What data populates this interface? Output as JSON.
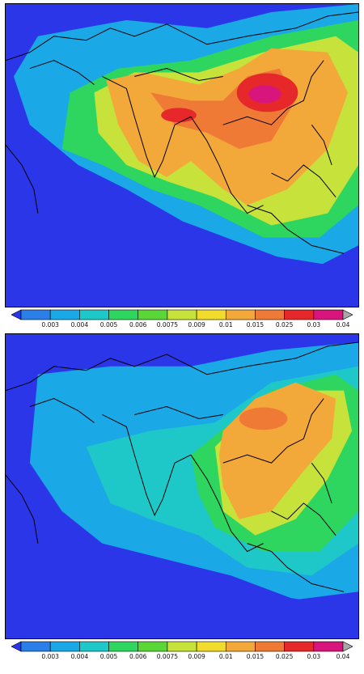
{
  "colorbar": {
    "ticks": [
      "0.003",
      "0.004",
      "0.005",
      "0.006",
      "0.0075",
      "0.009",
      "0.01",
      "0.015",
      "0.025",
      "0.03",
      "0.04"
    ],
    "colors": [
      "#2c36e9",
      "#2a7fe8",
      "#1aa8e6",
      "#1ec8c8",
      "#2ed65f",
      "#5ad636",
      "#c7e23a",
      "#f1dc2e",
      "#f3a83a",
      "#ee7a36",
      "#e6282a",
      "#d8157c",
      "#a8a8a8"
    ]
  },
  "maps": [
    {
      "name": "upper"
    },
    {
      "name": "lower"
    }
  ]
}
